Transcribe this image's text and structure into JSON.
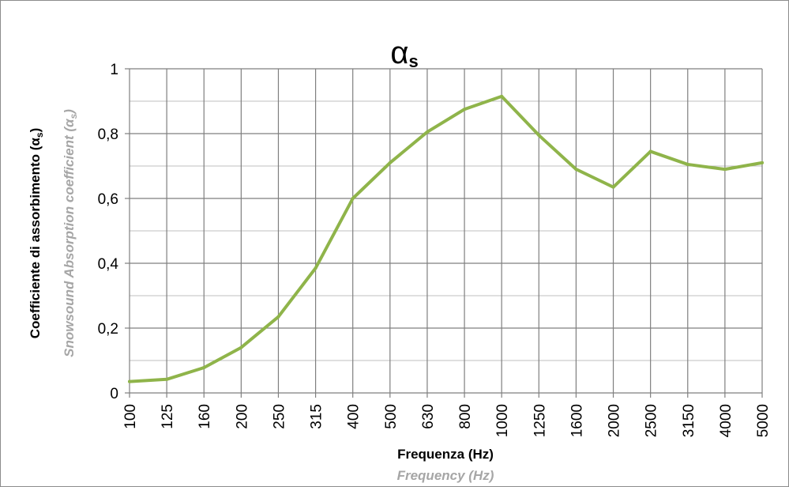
{
  "chart_data": {
    "type": "line",
    "title": {
      "symbol": "α",
      "subscript": "s"
    },
    "xlabel": "Frequenza (Hz)",
    "xlabel_en": "Frequency (Hz)",
    "ylabel": {
      "text": "Coefficiente di assorbimento (",
      "symbol": "α",
      "subscript": "s",
      "close": ")"
    },
    "ylabel_en": {
      "text": "Snowsound Absorption coefficient (",
      "symbol": "α",
      "subscript": "s",
      "close": ")"
    },
    "categories": [
      "100",
      "125",
      "160",
      "200",
      "250",
      "315",
      "400",
      "500",
      "630",
      "800",
      "1000",
      "1250",
      "1600",
      "2000",
      "2500",
      "3150",
      "4000",
      "5000"
    ],
    "series": [
      {
        "values": [
          0.035,
          0.042,
          0.078,
          0.14,
          0.235,
          0.385,
          0.6,
          0.71,
          0.805,
          0.875,
          0.915,
          0.795,
          0.69,
          0.635,
          0.745,
          0.705,
          0.69,
          0.71
        ]
      }
    ],
    "ylim": [
      0,
      1
    ],
    "yticks": [
      "0",
      "0,2",
      "0,4",
      "0,6",
      "0,8",
      "1"
    ],
    "grid": true,
    "legend": "none",
    "colors": {
      "line": "#8fb44a",
      "grid_major": "#7f7f7f",
      "grid_minor": "#bfbfbf",
      "axis_en_text": "#a6a6a6"
    }
  }
}
